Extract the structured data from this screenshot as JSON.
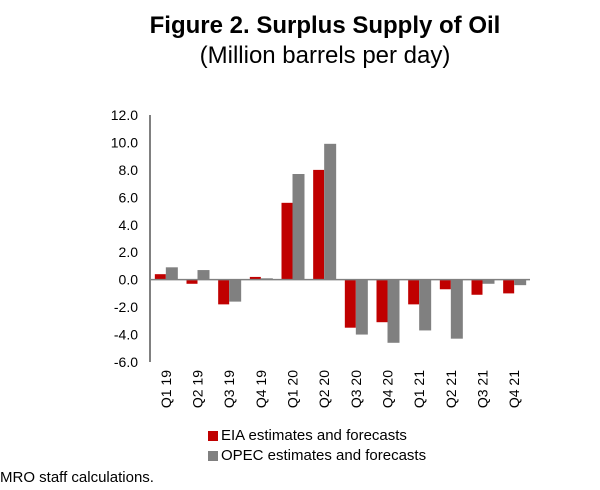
{
  "chart_data": {
    "type": "bar",
    "title": "Figure 2. Surplus Supply of Oil",
    "subtitle": "(Million barrels per day)",
    "categories": [
      "Q1 19",
      "Q2 19",
      "Q3 19",
      "Q4 19",
      "Q1 20",
      "Q2 20",
      "Q3 20",
      "Q4 20",
      "Q1 21",
      "Q2 21",
      "Q3 21",
      "Q4 21"
    ],
    "series": [
      {
        "name": "EIA estimates and forecasts",
        "color": "#c00000",
        "values": [
          0.4,
          -0.3,
          -1.8,
          0.2,
          5.6,
          8.0,
          -3.5,
          -3.1,
          -1.8,
          -0.7,
          -1.1,
          -1.0
        ]
      },
      {
        "name": "OPEC estimates and forecasts",
        "color": "#808080",
        "values": [
          0.9,
          0.7,
          -1.6,
          0.1,
          7.7,
          9.9,
          -4.0,
          -4.6,
          -3.7,
          -4.3,
          -0.3,
          -0.4
        ]
      }
    ],
    "ylim": [
      -6,
      12
    ],
    "yticks": [
      "12.0",
      "10.0",
      "8.0",
      "6.0",
      "4.0",
      "2.0",
      "0.0",
      "-2.0",
      "-4.0",
      "-6.0"
    ],
    "legend_position": "bottom",
    "grid": false
  },
  "footnote": "MRO staff calculations."
}
